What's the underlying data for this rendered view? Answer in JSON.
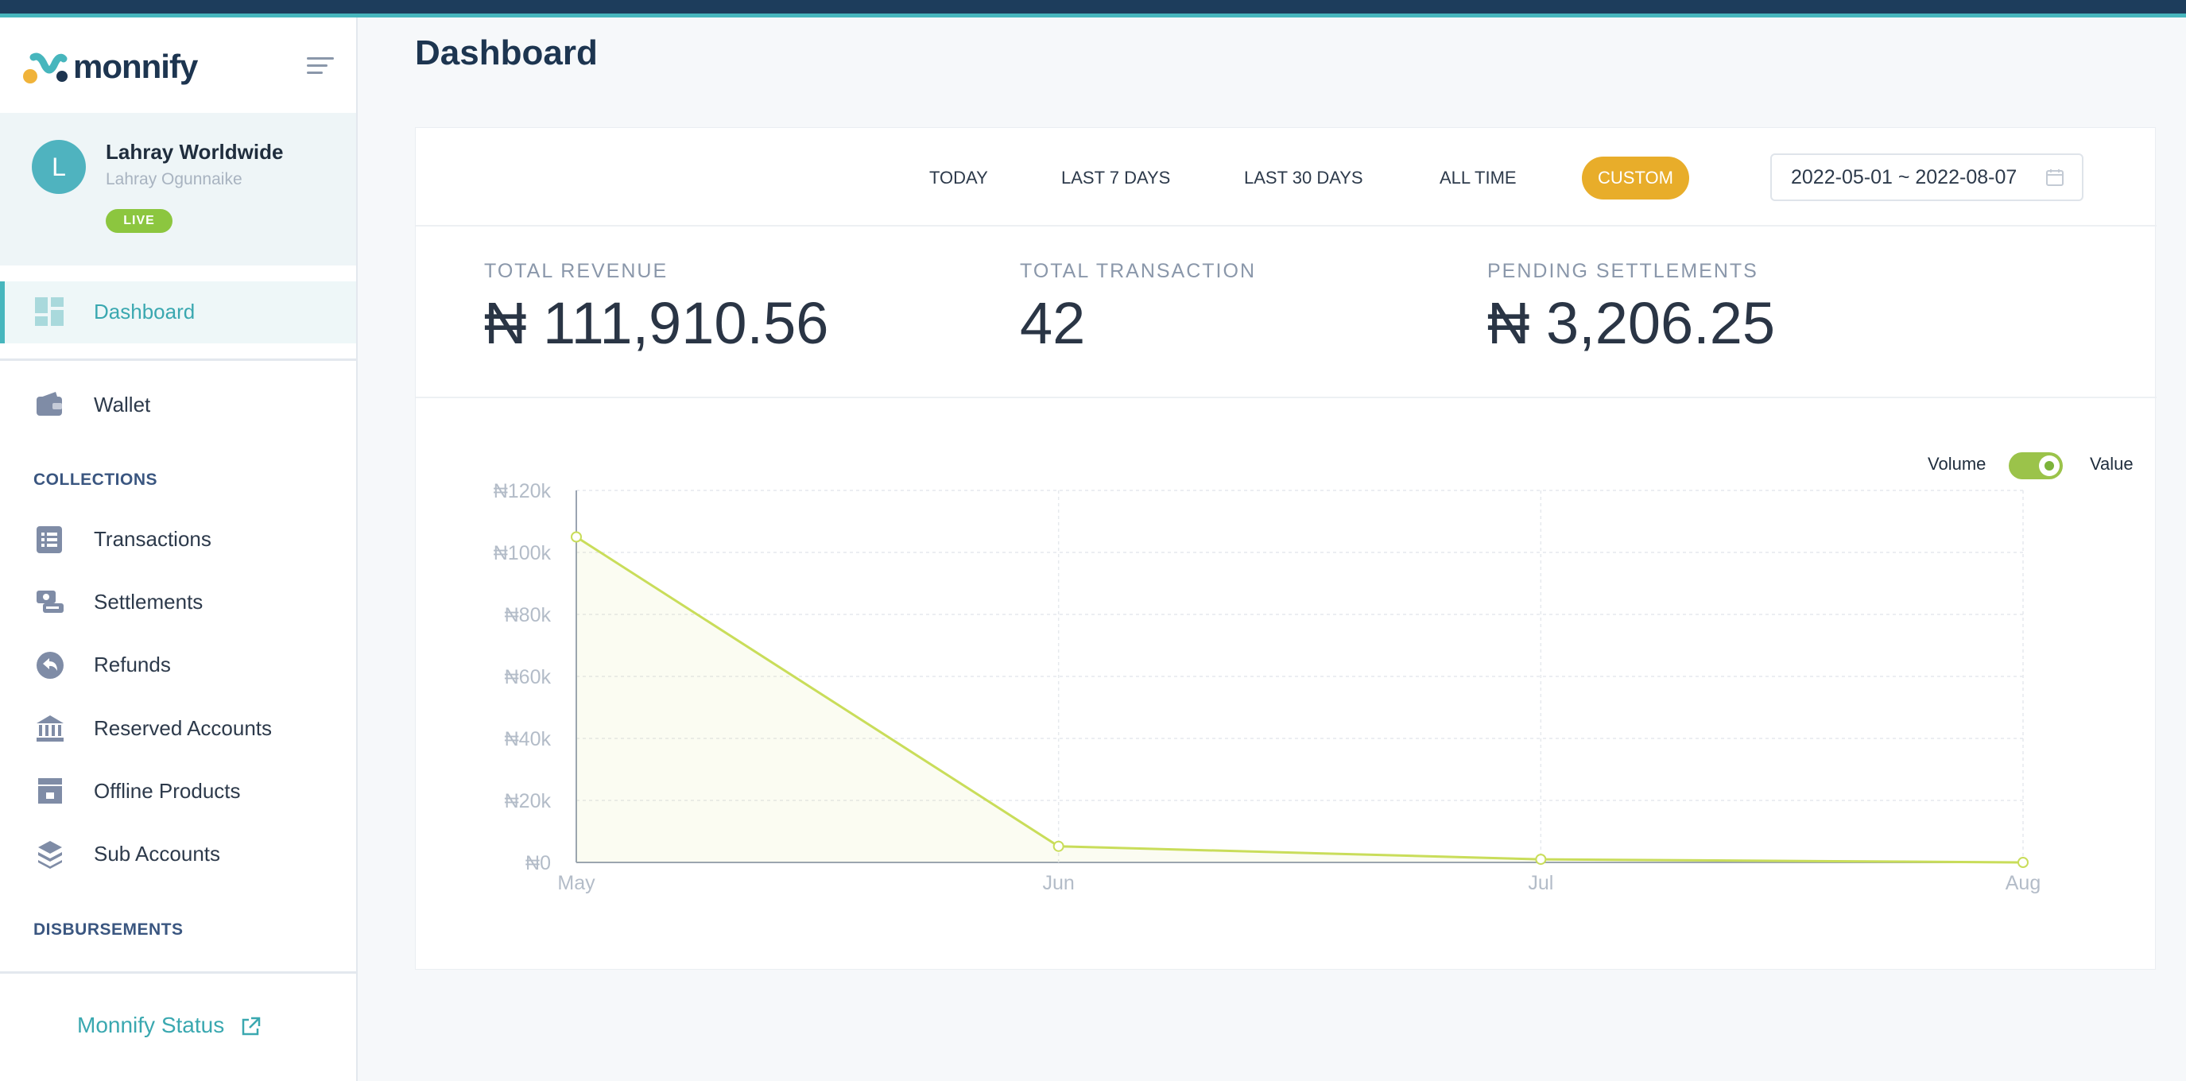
{
  "brand": {
    "name": "monnify"
  },
  "profile": {
    "initial": "L",
    "business_name": "Lahray Worldwide",
    "user_name": "Lahray Ogunnaike",
    "status_badge": "LIVE"
  },
  "sidebar": {
    "dashboard": "Dashboard",
    "wallet": "Wallet",
    "collections_title": "COLLECTIONS",
    "collections": [
      "Transactions",
      "Settlements",
      "Refunds",
      "Reserved Accounts",
      "Offline Products",
      "Sub Accounts"
    ],
    "disbursements_title": "DISBURSEMENTS",
    "status_link": "Monnify Status"
  },
  "page": {
    "title": "Dashboard"
  },
  "filters": {
    "today": "TODAY",
    "last7": "LAST 7 DAYS",
    "last30": "LAST 30 DAYS",
    "all_time": "ALL TIME",
    "custom": "CUSTOM",
    "date_range": "2022-05-01 ~ 2022-08-07"
  },
  "stats": {
    "revenue_label": "TOTAL REVENUE",
    "revenue_value": "₦ 111,910.56",
    "transaction_label": "TOTAL TRANSACTION",
    "transaction_value": "42",
    "pending_label": "PENDING SETTLEMENTS",
    "pending_value": "₦ 3,206.25"
  },
  "toggle": {
    "left_label": "Volume",
    "right_label": "Value",
    "selected": "Value"
  },
  "colors": {
    "accent": "#47b6bd",
    "custom_active": "#e8ad2a",
    "line": "#c9dd5a",
    "live": "#8cc63f"
  },
  "chart_data": {
    "type": "area",
    "x": [
      "May",
      "Jun",
      "Jul",
      "Aug"
    ],
    "series": [
      {
        "values": [
          105000,
          5200,
          1000,
          0
        ]
      }
    ],
    "ylim": [
      0,
      120000
    ],
    "yticks": [
      "₦0",
      "₦20k",
      "₦40k",
      "₦60k",
      "₦80k",
      "₦100k",
      "₦120k"
    ],
    "grid": true
  }
}
